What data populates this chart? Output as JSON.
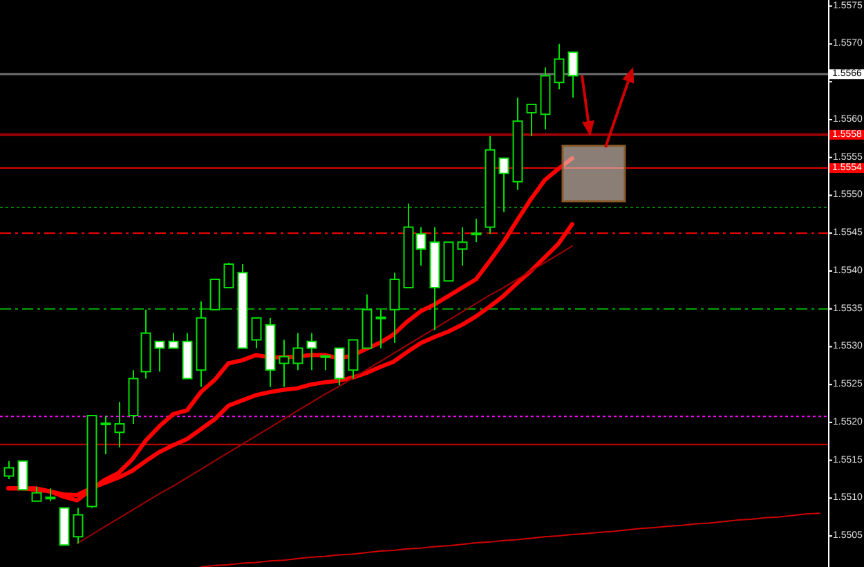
{
  "chart_data": {
    "type": "candlestick",
    "color": "#00e000",
    "categories": [
      null,
      null,
      null,
      null,
      null,
      null,
      null,
      null,
      null,
      null,
      null,
      null,
      null,
      null,
      null,
      null,
      null,
      null,
      null,
      null,
      null,
      null,
      null,
      null,
      null,
      null,
      null,
      null,
      null,
      null,
      null,
      null,
      null,
      null,
      null,
      null,
      null,
      null,
      null,
      null,
      null,
      null,
      null,
      null,
      null,
      null,
      null,
      null,
      null,
      null,
      null,
      null,
      null,
      null,
      null,
      null,
      null,
      null,
      null,
      null
    ],
    "ohlc": [
      [
        1.55129,
        1.55149,
        1.55125,
        1.5514
      ],
      [
        1.55149,
        1.55149,
        1.55111,
        1.55111
      ],
      [
        1.55096,
        1.55115,
        1.55096,
        1.55107
      ],
      [
        1.551,
        1.55113,
        1.55096,
        1.551
      ],
      [
        1.55087,
        1.55087,
        1.55038,
        1.55038
      ],
      [
        1.55049,
        1.55087,
        1.5504,
        1.55078
      ],
      [
        1.55089,
        1.55209,
        1.55087,
        1.55209
      ],
      [
        1.55198,
        1.55209,
        1.55158,
        1.55198
      ],
      [
        1.55187,
        1.55227,
        1.55167,
        1.55198
      ],
      [
        1.55209,
        1.55269,
        1.55198,
        1.55258
      ],
      [
        1.55267,
        1.55349,
        1.55258,
        1.55318
      ],
      [
        1.55307,
        1.55307,
        1.55267,
        1.55298
      ],
      [
        1.55307,
        1.55318,
        1.55298,
        1.55298
      ],
      [
        1.55307,
        1.55318,
        1.55258,
        1.55258
      ],
      [
        1.55269,
        1.5536,
        1.55247,
        1.55338
      ],
      [
        1.55349,
        1.55389,
        1.55349,
        1.55389
      ],
      [
        1.55378,
        1.55411,
        1.55378,
        1.55409
      ],
      [
        1.55398,
        1.55409,
        1.55298,
        1.55298
      ],
      [
        1.55309,
        1.55338,
        1.55298,
        1.55338
      ],
      [
        1.55329,
        1.55338,
        1.55247,
        1.55269
      ],
      [
        1.55278,
        1.55309,
        1.55247,
        1.55287
      ],
      [
        1.55278,
        1.55318,
        1.55269,
        1.55298
      ],
      [
        1.55307,
        1.55318,
        1.55269,
        1.55298
      ],
      [
        1.55287,
        1.55287,
        1.55269,
        1.55287
      ],
      [
        1.55298,
        1.55298,
        1.55249,
        1.55258
      ],
      [
        1.55269,
        1.55309,
        1.55258,
        1.55309
      ],
      [
        1.55298,
        1.55369,
        1.55298,
        1.55349
      ],
      [
        1.55338,
        1.55349,
        1.55298,
        1.55338
      ],
      [
        1.55349,
        1.55398,
        1.55305,
        1.55389
      ],
      [
        1.55378,
        1.55489,
        1.55378,
        1.55458
      ],
      [
        1.55449,
        1.55458,
        1.55407,
        1.55429
      ],
      [
        1.55438,
        1.55458,
        1.55322,
        1.55378
      ],
      [
        1.55387,
        1.55438,
        1.55387,
        1.55438
      ],
      [
        1.55429,
        1.55458,
        1.55407,
        1.55438
      ],
      [
        1.55449,
        1.55469,
        1.55438,
        1.55449
      ],
      [
        1.55458,
        1.55578,
        1.55449,
        1.5556
      ],
      [
        1.55549,
        1.55549,
        1.55478,
        1.55529
      ],
      [
        1.55518,
        1.55629,
        1.55507,
        1.55598
      ],
      [
        1.55609,
        1.5562,
        1.55578,
        1.5562
      ],
      [
        1.55607,
        1.55669,
        1.55587,
        1.55658
      ],
      [
        1.55649,
        1.557,
        1.5564,
        1.5568
      ],
      [
        1.55689,
        1.55689,
        1.55629,
        1.55658
      ],
      null,
      null,
      null,
      null,
      null,
      null,
      null,
      null,
      null,
      null,
      null,
      null,
      null,
      null,
      null,
      null,
      null,
      null
    ],
    "series": [
      {
        "type": "line",
        "color": "#ff0000",
        "values": [
          1.55113,
          1.55113,
          1.55113,
          1.55109,
          1.55102,
          1.55097,
          1.55111,
          1.55124,
          1.55133,
          1.55151,
          1.55176,
          1.55195,
          1.55211,
          1.55216,
          1.5524,
          1.55256,
          1.55278,
          1.55282,
          1.55289,
          1.55286,
          1.55286,
          1.55287,
          1.55289,
          1.55289,
          1.55285,
          1.55288,
          1.55297,
          1.55305,
          1.55316,
          1.55333,
          1.55347,
          1.55356,
          1.55367,
          1.55378,
          1.55389,
          1.55413,
          1.55438,
          1.55467,
          1.55495,
          1.5552,
          1.55535,
          1.55549,
          null,
          null,
          null,
          null,
          null,
          null,
          null,
          null,
          null,
          null,
          null,
          null,
          null,
          null,
          null,
          null,
          null,
          null
        ]
      },
      {
        "type": "line",
        "color": "#ff0000",
        "values": [
          1.55113,
          1.55113,
          1.55111,
          1.55109,
          1.55105,
          1.55104,
          1.55113,
          1.5512,
          1.55127,
          1.55136,
          1.55149,
          1.55161,
          1.5517,
          1.55178,
          1.55191,
          1.55204,
          1.55222,
          1.55229,
          1.55236,
          1.5524,
          1.55243,
          1.55245,
          1.5525,
          1.55253,
          1.55255,
          1.55259,
          1.55265,
          1.55273,
          1.5528,
          1.55293,
          1.55305,
          1.55313,
          1.5532,
          1.55329,
          1.5534,
          1.55353,
          1.55367,
          1.55384,
          1.554,
          1.55418,
          1.55436,
          1.55462,
          null,
          null,
          null,
          null,
          null,
          null,
          null,
          null,
          null,
          null,
          null,
          null,
          null,
          null,
          null,
          null,
          null,
          null
        ]
      },
      {
        "type": "line",
        "color": "#a00000",
        "values": [
          null,
          null,
          null,
          null,
          null,
          1.5504,
          1.55051,
          1.55062,
          1.55073,
          1.55084,
          1.55095,
          1.55106,
          1.55116,
          1.55127,
          1.55138,
          1.55149,
          1.5516,
          1.55171,
          1.55182,
          1.55193,
          1.55204,
          1.55215,
          1.55226,
          1.55237,
          1.55247,
          1.55258,
          1.55269,
          1.5528,
          1.55291,
          1.55302,
          1.55313,
          1.55324,
          1.55335,
          1.55346,
          1.55357,
          1.55368,
          1.55378,
          1.55389,
          1.554,
          1.55411,
          1.55422,
          1.55433,
          null,
          null,
          null,
          null,
          null,
          null,
          null,
          null,
          null,
          null,
          null,
          null,
          null,
          null,
          null,
          null,
          null,
          null
        ]
      },
      {
        "type": "line",
        "color": "#d00000",
        "values": [
          null,
          null,
          null,
          null,
          null,
          null,
          null,
          null,
          null,
          null,
          null,
          null,
          null,
          null,
          1.55009,
          1.55011,
          1.55012,
          1.55014,
          1.55015,
          1.55017,
          1.55018,
          1.5502,
          1.55022,
          1.55023,
          1.55025,
          1.55026,
          1.55028,
          1.5503,
          1.55031,
          1.55033,
          1.55034,
          1.55036,
          1.55037,
          1.55039,
          1.55041,
          1.55042,
          1.55044,
          1.55045,
          1.55047,
          1.55049,
          1.5505,
          1.55052,
          1.55053,
          1.55055,
          1.55056,
          1.55058,
          1.5506,
          1.55061,
          1.55063,
          1.55064,
          1.55066,
          1.55067,
          1.55069,
          1.55071,
          1.55072,
          1.55074,
          1.55075,
          1.55077,
          1.55079,
          1.5508
        ]
      }
    ],
    "ylim": [
      1.55009,
      1.55758
    ],
    "yticks": [
      1.5505,
      {
        "value": 1.551,
        "label": "1.5510"
      },
      1.5515,
      {
        "value": 1.552,
        "label": "1.5520"
      },
      1.5525,
      {
        "value": 1.553,
        "label": "1.5530"
      },
      1.5535,
      {
        "value": 1.554,
        "label": "1.5540"
      },
      1.5545,
      {
        "value": 1.555,
        "label": "1.5550"
      },
      1.5555,
      {
        "value": 1.556,
        "label": "1.5560"
      },
      {
        "value": 1.5565,
        "label": null
      },
      {
        "value": 1.557,
        "label": "1.5570"
      },
      1.5575
    ],
    "ref_lines": [
      {
        "axis": "y",
        "value": 1.5566,
        "label": "1.5566",
        "color": "#6e6e6e"
      },
      {
        "axis": "y",
        "value": 1.5558,
        "label": "1.5558",
        "color": "#9a0000"
      },
      {
        "axis": "y",
        "value": 1.55536,
        "label": "1.5554",
        "color": "#e00000"
      },
      {
        "axis": "y",
        "value": 1.55484,
        "color": "#008000",
        "line_style": "dotted"
      },
      {
        "axis": "y",
        "value": 1.5545,
        "color": "#ff0000",
        "line_style": "dashdot"
      },
      {
        "axis": "y",
        "value": 1.5535,
        "color": "#00b000",
        "line_style": "dashdot"
      },
      {
        "axis": "y",
        "value": 1.55208,
        "color": "#ff00ff",
        "line_style": "dotted"
      },
      {
        "axis": "y",
        "value": 1.55171,
        "color": "#cc0000"
      }
    ],
    "tick_labels": "y"
  }
}
